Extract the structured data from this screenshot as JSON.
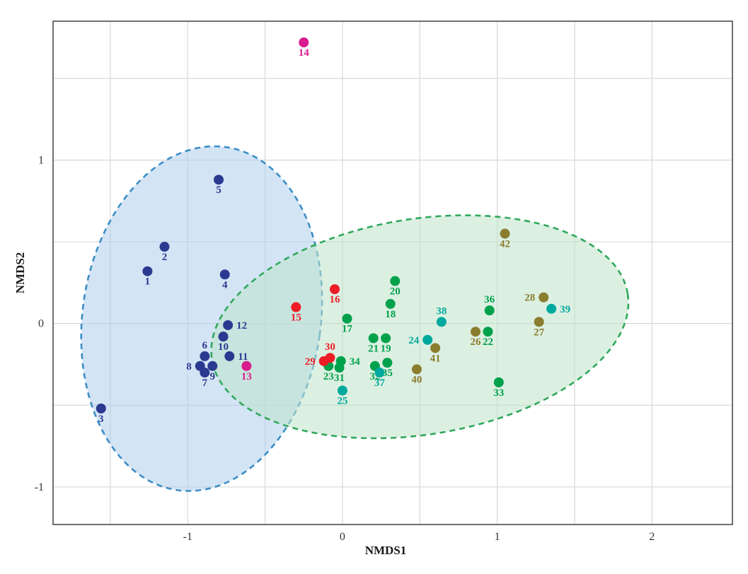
{
  "chart_data": {
    "type": "scatter",
    "title": "",
    "xlabel": "NMDS1",
    "ylabel": "NMDS2",
    "xlim": [
      -1.87,
      2.52
    ],
    "ylim": [
      -1.23,
      1.85
    ],
    "x_ticks": [
      -1,
      0,
      1,
      2
    ],
    "y_ticks": [
      -1,
      0,
      1
    ],
    "grid_step": 0.5,
    "grid": true,
    "legend": "none",
    "colors": {
      "navy": "#2b3990",
      "magenta": "#d81b8d",
      "red": "#ee1c25",
      "green": "#00a14b",
      "teal": "#00a99d",
      "olive": "#8b7d2e"
    },
    "ellipses": [
      {
        "name": "blue-cluster",
        "cx": -0.91,
        "cy": 0.03,
        "rx": 0.77,
        "ry": 1.06,
        "rotate": 8,
        "fill": "#aecdec",
        "fill_opacity": 0.55,
        "stroke": "#3b8ec6"
      },
      {
        "name": "green-cluster",
        "cx": 0.5,
        "cy": -0.02,
        "rx": 1.36,
        "ry": 0.66,
        "rotate": -9,
        "fill": "#bfe3cb",
        "fill_opacity": 0.55,
        "stroke": "#2fa85c"
      }
    ],
    "points": [
      {
        "id": "1",
        "x": -1.26,
        "y": 0.32,
        "group": "navy",
        "label_pos": "below"
      },
      {
        "id": "2",
        "x": -1.15,
        "y": 0.47,
        "group": "navy",
        "label_pos": "below"
      },
      {
        "id": "3",
        "x": -1.56,
        "y": -0.52,
        "group": "navy",
        "label_pos": "below"
      },
      {
        "id": "4",
        "x": -0.76,
        "y": 0.3,
        "group": "navy",
        "label_pos": "below"
      },
      {
        "id": "5",
        "x": -0.8,
        "y": 0.88,
        "group": "navy",
        "label_pos": "below"
      },
      {
        "id": "6",
        "x": -0.89,
        "y": -0.2,
        "group": "navy",
        "label_pos": "above"
      },
      {
        "id": "7",
        "x": -0.89,
        "y": -0.3,
        "group": "navy",
        "label_pos": "below"
      },
      {
        "id": "8",
        "x": -0.92,
        "y": -0.26,
        "group": "navy",
        "label_pos": "left"
      },
      {
        "id": "9",
        "x": -0.84,
        "y": -0.26,
        "group": "navy",
        "label_pos": "below"
      },
      {
        "id": "10",
        "x": -0.77,
        "y": -0.08,
        "group": "navy",
        "label_pos": "below"
      },
      {
        "id": "11",
        "x": -0.73,
        "y": -0.2,
        "group": "navy",
        "label_pos": "right"
      },
      {
        "id": "12",
        "x": -0.74,
        "y": -0.01,
        "group": "navy",
        "label_pos": "right"
      },
      {
        "id": "13",
        "x": -0.62,
        "y": -0.26,
        "group": "magenta",
        "label_pos": "below"
      },
      {
        "id": "14",
        "x": -0.25,
        "y": 1.72,
        "group": "magenta",
        "label_pos": "below"
      },
      {
        "id": "15",
        "x": -0.3,
        "y": 0.1,
        "group": "red",
        "label_pos": "below"
      },
      {
        "id": "16",
        "x": -0.05,
        "y": 0.21,
        "group": "red",
        "label_pos": "below"
      },
      {
        "id": "17",
        "x": 0.03,
        "y": 0.03,
        "group": "green",
        "label_pos": "below"
      },
      {
        "id": "18",
        "x": 0.31,
        "y": 0.12,
        "group": "green",
        "label_pos": "below"
      },
      {
        "id": "19",
        "x": 0.28,
        "y": -0.09,
        "group": "green",
        "label_pos": "below"
      },
      {
        "id": "20",
        "x": 0.34,
        "y": 0.26,
        "group": "green",
        "label_pos": "below"
      },
      {
        "id": "21",
        "x": 0.2,
        "y": -0.09,
        "group": "green",
        "label_pos": "below"
      },
      {
        "id": "22",
        "x": 0.94,
        "y": -0.05,
        "group": "green",
        "label_pos": "below"
      },
      {
        "id": "23",
        "x": -0.09,
        "y": -0.26,
        "group": "green",
        "label_pos": "below"
      },
      {
        "id": "24",
        "x": 0.55,
        "y": -0.1,
        "group": "teal",
        "label_pos": "left"
      },
      {
        "id": "25",
        "x": 0.0,
        "y": -0.41,
        "group": "teal",
        "label_pos": "below"
      },
      {
        "id": "26",
        "x": 0.86,
        "y": -0.05,
        "group": "olive",
        "label_pos": "below"
      },
      {
        "id": "27",
        "x": 1.27,
        "y": 0.01,
        "group": "olive",
        "label_pos": "below"
      },
      {
        "id": "28",
        "x": 1.3,
        "y": 0.16,
        "group": "olive",
        "label_pos": "left"
      },
      {
        "id": "29",
        "x": -0.12,
        "y": -0.23,
        "group": "red",
        "label_pos": "left"
      },
      {
        "id": "30",
        "x": -0.08,
        "y": -0.21,
        "group": "red",
        "label_pos": "above"
      },
      {
        "id": "31",
        "x": -0.02,
        "y": -0.27,
        "group": "green",
        "label_pos": "below"
      },
      {
        "id": "32",
        "x": 0.21,
        "y": -0.26,
        "group": "green",
        "label_pos": "below"
      },
      {
        "id": "33",
        "x": 1.01,
        "y": -0.36,
        "group": "green",
        "label_pos": "below"
      },
      {
        "id": "34",
        "x": -0.01,
        "y": -0.23,
        "group": "green",
        "label_pos": "right"
      },
      {
        "id": "35",
        "x": 0.29,
        "y": -0.24,
        "group": "green",
        "label_pos": "below"
      },
      {
        "id": "36",
        "x": 0.95,
        "y": 0.08,
        "group": "green",
        "label_pos": "above"
      },
      {
        "id": "37",
        "x": 0.24,
        "y": -0.3,
        "group": "teal",
        "label_pos": "below"
      },
      {
        "id": "38",
        "x": 0.64,
        "y": 0.01,
        "group": "teal",
        "label_pos": "above"
      },
      {
        "id": "39",
        "x": 1.35,
        "y": 0.09,
        "group": "teal",
        "label_pos": "right"
      },
      {
        "id": "40",
        "x": 0.48,
        "y": -0.28,
        "group": "olive",
        "label_pos": "below"
      },
      {
        "id": "41",
        "x": 0.6,
        "y": -0.15,
        "group": "olive",
        "label_pos": "below"
      },
      {
        "id": "42",
        "x": 1.05,
        "y": 0.55,
        "group": "olive",
        "label_pos": "below"
      }
    ]
  }
}
